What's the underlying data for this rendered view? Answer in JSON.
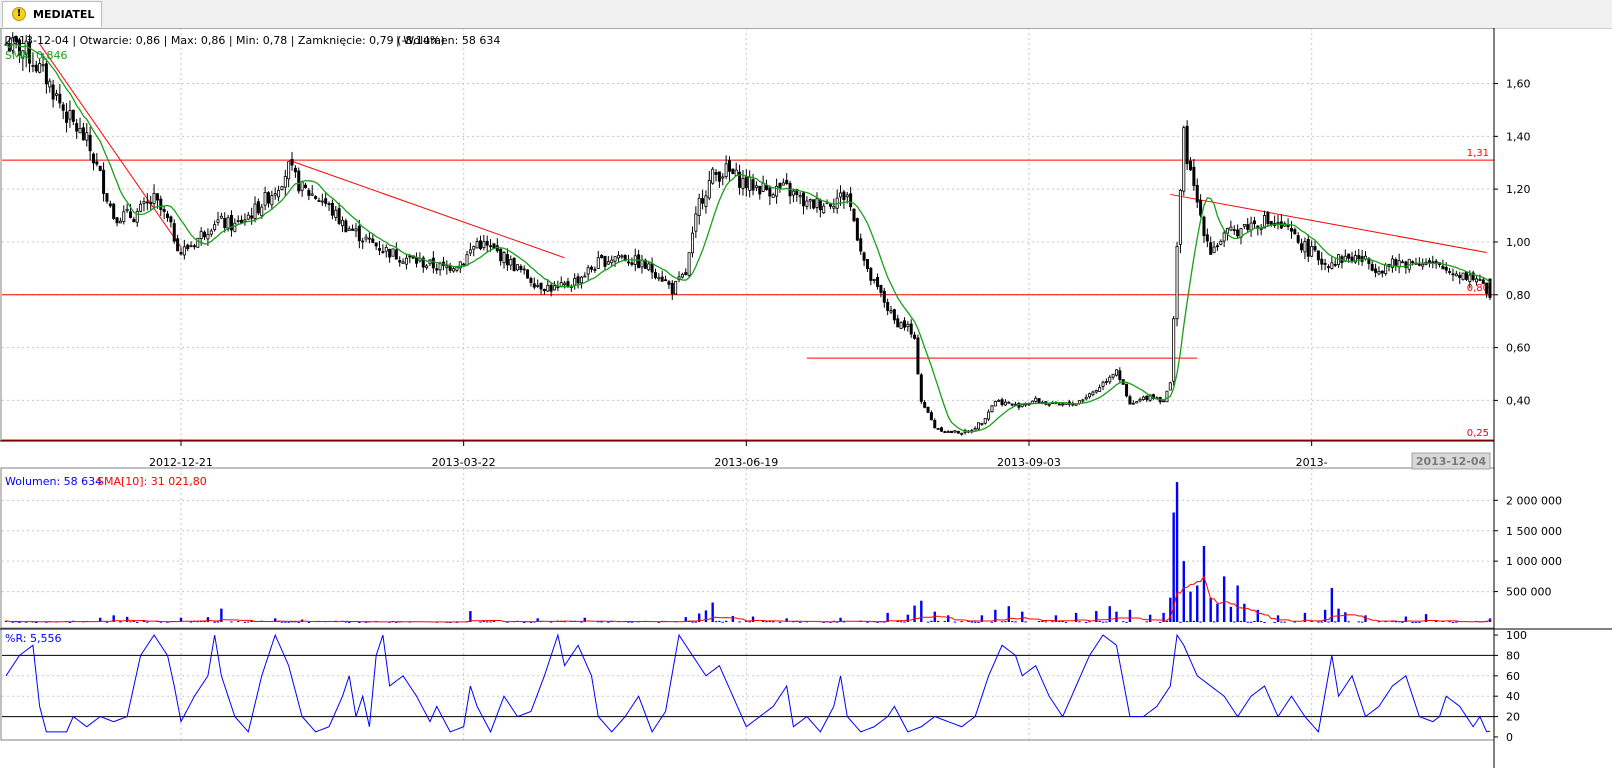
{
  "tab": {
    "label": "MEDIATEL",
    "icon": "warning-icon"
  },
  "info": {
    "ohlc_text": "2013-12-04 | Otwarcie: 0,86 | Max: 0,86 | Min: 0,78 | Zamknięcie: 0,79 (-8,14%)",
    "volume_text": "| Wolumen: 58 634",
    "sma_text": "SMA: 0,846"
  },
  "volume_legend": {
    "volume": "Wolumen: 58 634",
    "sma": "SMA[10]: 31 021,80"
  },
  "wr_legend": "%R: 5,556",
  "colors": {
    "up": "#ffffff",
    "down": "#000000",
    "sma": "#19a019",
    "trend": "#ff0000",
    "volume": "#0000ff",
    "wr": "#0000ff"
  },
  "price_axis": {
    "ticks": [
      {
        "v": 0.4,
        "label": "0,40"
      },
      {
        "v": 0.6,
        "label": "0,60"
      },
      {
        "v": 0.8,
        "label": "0,80"
      },
      {
        "v": 1.0,
        "label": "1,00"
      },
      {
        "v": 1.2,
        "label": "1,20"
      },
      {
        "v": 1.4,
        "label": "1,40"
      },
      {
        "v": 1.6,
        "label": "1,60"
      }
    ],
    "ylim": [
      0.25,
      1.78
    ]
  },
  "volume_axis": {
    "ticks": [
      {
        "v": 500000,
        "label": "500 000"
      },
      {
        "v": 1000000,
        "label": "1 000 000"
      },
      {
        "v": 1500000,
        "label": "1 500 000"
      },
      {
        "v": 2000000,
        "label": "2 000 000"
      }
    ],
    "ylim": [
      0,
      2400000
    ]
  },
  "wr_axis": {
    "ticks": [
      {
        "v": 0,
        "label": "0"
      },
      {
        "v": 20,
        "label": "20"
      },
      {
        "v": 40,
        "label": "40"
      },
      {
        "v": 60,
        "label": "60"
      },
      {
        "v": 80,
        "label": "80"
      },
      {
        "v": 100,
        "label": "100"
      }
    ],
    "ylim": [
      -3,
      103
    ]
  },
  "x_labels": [
    {
      "i": 52,
      "label": "2012-12-21"
    },
    {
      "i": 136,
      "label": "2013-03-22"
    },
    {
      "i": 220,
      "label": "2013-06-19"
    },
    {
      "i": 304,
      "label": "2013-09-03"
    },
    {
      "i": 388,
      "label": "2013-"
    }
  ],
  "last_date": "2013-12-04",
  "levels": [
    {
      "v": 1.31,
      "label": "1,31"
    },
    {
      "v": 0.8,
      "label": "0,80"
    },
    {
      "v": 0.25,
      "label": "0,25"
    }
  ],
  "chart_data": [
    {
      "type": "candlestick",
      "title": "MEDIATEL",
      "x_label_count": 410,
      "closes_anchor": [
        [
          0,
          1.75
        ],
        [
          6,
          1.72
        ],
        [
          12,
          1.62
        ],
        [
          18,
          1.48
        ],
        [
          24,
          1.38
        ],
        [
          28,
          1.25
        ],
        [
          32,
          1.1
        ],
        [
          38,
          1.1
        ],
        [
          44,
          1.16
        ],
        [
          48,
          1.08
        ],
        [
          52,
          0.96
        ],
        [
          56,
          1.0
        ],
        [
          62,
          1.08
        ],
        [
          68,
          1.06
        ],
        [
          74,
          1.12
        ],
        [
          80,
          1.2
        ],
        [
          84,
          1.28
        ],
        [
          88,
          1.2
        ],
        [
          94,
          1.16
        ],
        [
          100,
          1.07
        ],
        [
          108,
          1.0
        ],
        [
          116,
          0.95
        ],
        [
          124,
          0.92
        ],
        [
          130,
          0.9
        ],
        [
          136,
          0.93
        ],
        [
          140,
          1.0
        ],
        [
          146,
          0.96
        ],
        [
          152,
          0.9
        ],
        [
          158,
          0.84
        ],
        [
          164,
          0.82
        ],
        [
          170,
          0.86
        ],
        [
          176,
          0.92
        ],
        [
          182,
          0.95
        ],
        [
          188,
          0.92
        ],
        [
          194,
          0.88
        ],
        [
          198,
          0.82
        ],
        [
          202,
          0.88
        ],
        [
          206,
          1.15
        ],
        [
          210,
          1.25
        ],
        [
          214,
          1.27
        ],
        [
          220,
          1.22
        ],
        [
          226,
          1.2
        ],
        [
          232,
          1.2
        ],
        [
          238,
          1.14
        ],
        [
          244,
          1.15
        ],
        [
          250,
          1.18
        ],
        [
          256,
          0.88
        ],
        [
          260,
          0.8
        ],
        [
          264,
          0.7
        ],
        [
          268,
          0.68
        ],
        [
          270,
          0.62
        ],
        [
          272,
          0.4
        ],
        [
          276,
          0.3
        ],
        [
          280,
          0.28
        ],
        [
          286,
          0.28
        ],
        [
          290,
          0.32
        ],
        [
          294,
          0.4
        ],
        [
          300,
          0.38
        ],
        [
          306,
          0.4
        ],
        [
          312,
          0.38
        ],
        [
          318,
          0.39
        ],
        [
          324,
          0.44
        ],
        [
          330,
          0.52
        ],
        [
          334,
          0.38
        ],
        [
          340,
          0.42
        ],
        [
          344,
          0.4
        ],
        [
          346,
          0.46
        ],
        [
          348,
          0.99
        ],
        [
          350,
          1.4
        ],
        [
          352,
          1.25
        ],
        [
          356,
          1.05
        ],
        [
          358,
          0.97
        ],
        [
          362,
          1.02
        ],
        [
          368,
          1.06
        ],
        [
          374,
          1.08
        ],
        [
          380,
          1.05
        ],
        [
          386,
          0.98
        ],
        [
          392,
          0.92
        ],
        [
          398,
          0.94
        ],
        [
          402,
          0.94
        ],
        [
          408,
          0.9
        ],
        [
          414,
          0.92
        ],
        [
          420,
          0.93
        ],
        [
          426,
          0.9
        ],
        [
          432,
          0.88
        ],
        [
          438,
          0.86
        ],
        [
          440,
          0.79
        ]
      ],
      "last_candle": {
        "date": "2013-12-04",
        "open": 0.86,
        "high": 0.86,
        "low": 0.78,
        "close": 0.79,
        "change_pct": -8.14,
        "volume": 58634
      },
      "sma_last": 0.846,
      "trendlines": [
        {
          "from": [
            10,
            1.75
          ],
          "to": [
            52,
            0.98
          ]
        },
        {
          "from": [
            84,
            1.31
          ],
          "to": [
            166,
            0.94
          ]
        },
        {
          "from": [
            346,
            1.18
          ],
          "to": [
            440,
            0.96
          ]
        },
        {
          "from": [
            238,
            0.56
          ],
          "to": [
            354,
            0.56
          ]
        }
      ],
      "horizontal_levels": [
        1.31,
        0.8,
        0.25
      ],
      "ylim": [
        0.25,
        1.78
      ]
    },
    {
      "type": "bar",
      "title": "Wolumen",
      "base_volume": 35000,
      "volume_spikes": [
        [
          28,
          70000
        ],
        [
          32,
          110000
        ],
        [
          36,
          85000
        ],
        [
          52,
          70000
        ],
        [
          60,
          80000
        ],
        [
          64,
          220000
        ],
        [
          80,
          60000
        ],
        [
          88,
          40000
        ],
        [
          138,
          180000
        ],
        [
          158,
          60000
        ],
        [
          172,
          70000
        ],
        [
          202,
          80000
        ],
        [
          206,
          140000
        ],
        [
          208,
          190000
        ],
        [
          210,
          320000
        ],
        [
          216,
          100000
        ],
        [
          222,
          90000
        ],
        [
          232,
          60000
        ],
        [
          248,
          70000
        ],
        [
          262,
          150000
        ],
        [
          268,
          120000
        ],
        [
          270,
          270000
        ],
        [
          272,
          350000
        ],
        [
          276,
          170000
        ],
        [
          280,
          110000
        ],
        [
          290,
          110000
        ],
        [
          294,
          200000
        ],
        [
          298,
          260000
        ],
        [
          302,
          170000
        ],
        [
          312,
          110000
        ],
        [
          318,
          150000
        ],
        [
          324,
          180000
        ],
        [
          328,
          260000
        ],
        [
          330,
          170000
        ],
        [
          334,
          200000
        ],
        [
          340,
          120000
        ],
        [
          344,
          150000
        ],
        [
          346,
          400000
        ],
        [
          347,
          1800000
        ],
        [
          348,
          2300000
        ],
        [
          350,
          1000000
        ],
        [
          352,
          500000
        ],
        [
          354,
          600000
        ],
        [
          356,
          1250000
        ],
        [
          358,
          400000
        ],
        [
          360,
          300000
        ],
        [
          362,
          750000
        ],
        [
          364,
          250000
        ],
        [
          366,
          600000
        ],
        [
          368,
          300000
        ],
        [
          372,
          200000
        ],
        [
          378,
          110000
        ],
        [
          386,
          150000
        ],
        [
          392,
          200000
        ],
        [
          394,
          560000
        ],
        [
          396,
          220000
        ],
        [
          398,
          160000
        ],
        [
          404,
          110000
        ],
        [
          416,
          90000
        ],
        [
          422,
          130000
        ]
      ],
      "sma10_last": 31021.8,
      "ylim": [
        0,
        2400000
      ]
    },
    {
      "type": "line",
      "title": "%R",
      "last_value": 5.556,
      "overbought": 80,
      "oversold": 20,
      "wr_anchor": [
        [
          0,
          60
        ],
        [
          4,
          80
        ],
        [
          8,
          90
        ],
        [
          10,
          30
        ],
        [
          12,
          5
        ],
        [
          18,
          5
        ],
        [
          20,
          20
        ],
        [
          24,
          10
        ],
        [
          28,
          20
        ],
        [
          32,
          15
        ],
        [
          36,
          20
        ],
        [
          40,
          80
        ],
        [
          44,
          100
        ],
        [
          48,
          80
        ],
        [
          50,
          50
        ],
        [
          52,
          15
        ],
        [
          56,
          40
        ],
        [
          60,
          60
        ],
        [
          62,
          100
        ],
        [
          64,
          60
        ],
        [
          68,
          20
        ],
        [
          72,
          5
        ],
        [
          76,
          60
        ],
        [
          80,
          100
        ],
        [
          82,
          85
        ],
        [
          84,
          70
        ],
        [
          88,
          20
        ],
        [
          92,
          5
        ],
        [
          96,
          10
        ],
        [
          100,
          40
        ],
        [
          102,
          60
        ],
        [
          104,
          20
        ],
        [
          106,
          40
        ],
        [
          108,
          10
        ],
        [
          110,
          80
        ],
        [
          112,
          100
        ],
        [
          114,
          50
        ],
        [
          118,
          60
        ],
        [
          122,
          40
        ],
        [
          126,
          15
        ],
        [
          128,
          30
        ],
        [
          132,
          5
        ],
        [
          136,
          10
        ],
        [
          138,
          50
        ],
        [
          140,
          30
        ],
        [
          144,
          5
        ],
        [
          148,
          40
        ],
        [
          152,
          20
        ],
        [
          156,
          25
        ],
        [
          160,
          60
        ],
        [
          164,
          100
        ],
        [
          166,
          70
        ],
        [
          170,
          90
        ],
        [
          174,
          60
        ],
        [
          176,
          20
        ],
        [
          180,
          5
        ],
        [
          184,
          20
        ],
        [
          188,
          40
        ],
        [
          192,
          5
        ],
        [
          196,
          25
        ],
        [
          200,
          100
        ],
        [
          204,
          80
        ],
        [
          208,
          60
        ],
        [
          212,
          70
        ],
        [
          216,
          40
        ],
        [
          220,
          10
        ],
        [
          224,
          20
        ],
        [
          228,
          30
        ],
        [
          232,
          50
        ],
        [
          234,
          10
        ],
        [
          238,
          20
        ],
        [
          242,
          5
        ],
        [
          246,
          30
        ],
        [
          248,
          60
        ],
        [
          250,
          20
        ],
        [
          254,
          5
        ],
        [
          258,
          10
        ],
        [
          262,
          20
        ],
        [
          264,
          30
        ],
        [
          268,
          5
        ],
        [
          272,
          10
        ],
        [
          276,
          20
        ],
        [
          280,
          15
        ],
        [
          284,
          10
        ],
        [
          288,
          20
        ],
        [
          292,
          60
        ],
        [
          296,
          90
        ],
        [
          300,
          80
        ],
        [
          302,
          60
        ],
        [
          306,
          70
        ],
        [
          310,
          40
        ],
        [
          314,
          20
        ],
        [
          318,
          50
        ],
        [
          322,
          80
        ],
        [
          326,
          100
        ],
        [
          330,
          90
        ],
        [
          334,
          20
        ],
        [
          338,
          20
        ],
        [
          342,
          30
        ],
        [
          346,
          50
        ],
        [
          348,
          100
        ],
        [
          350,
          90
        ],
        [
          354,
          60
        ],
        [
          358,
          50
        ],
        [
          362,
          40
        ],
        [
          366,
          20
        ],
        [
          370,
          40
        ],
        [
          374,
          50
        ],
        [
          378,
          20
        ],
        [
          382,
          40
        ],
        [
          386,
          20
        ],
        [
          390,
          5
        ],
        [
          394,
          80
        ],
        [
          396,
          40
        ],
        [
          400,
          60
        ],
        [
          404,
          20
        ],
        [
          408,
          30
        ],
        [
          412,
          50
        ],
        [
          416,
          60
        ],
        [
          418,
          40
        ],
        [
          420,
          20
        ],
        [
          424,
          15
        ],
        [
          426,
          20
        ],
        [
          428,
          40
        ],
        [
          432,
          30
        ],
        [
          436,
          10
        ],
        [
          438,
          20
        ],
        [
          440,
          5
        ]
      ],
      "ylim": [
        0,
        100
      ]
    }
  ]
}
